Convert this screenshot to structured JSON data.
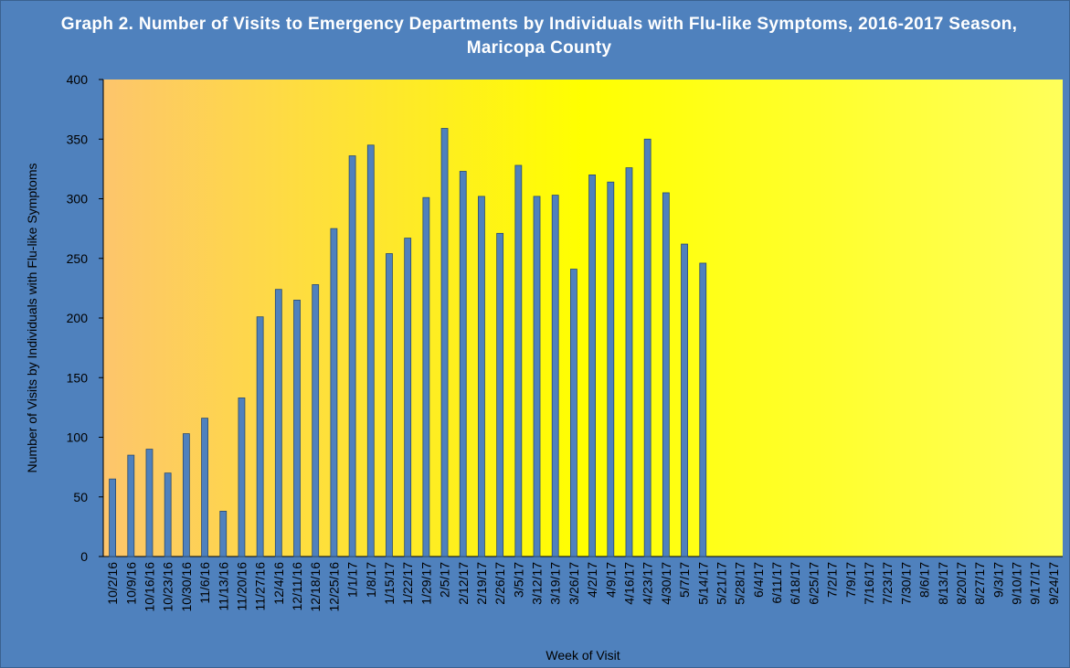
{
  "chart_data": {
    "type": "bar",
    "title": "Graph 2. Number of Visits to Emergency Departments by Individuals with Flu-like Symptoms, 2016-2017 Season, Maricopa County",
    "x_label": "Week of Visit",
    "y_label": "Number of Visits by Individuals with Flu-like Symptoms",
    "categories": [
      "10/2/16",
      "10/9/16",
      "10/16/16",
      "10/23/16",
      "10/30/16",
      "11/6/16",
      "11/13/16",
      "11/20/16",
      "11/27/16",
      "12/4/16",
      "12/11/16",
      "12/18/16",
      "12/25/16",
      "1/1/17",
      "1/8/17",
      "1/15/17",
      "1/22/17",
      "1/29/17",
      "2/5/17",
      "2/12/17",
      "2/19/17",
      "2/26/17",
      "3/5/17",
      "3/12/17",
      "3/19/17",
      "3/26/17",
      "4/2/17",
      "4/9/17",
      "4/16/17",
      "4/23/17",
      "4/30/17",
      "5/7/17",
      "5/14/17",
      "5/21/17",
      "5/28/17",
      "6/4/17",
      "6/11/17",
      "6/18/17",
      "6/25/17",
      "7/2/17",
      "7/9/17",
      "7/16/17",
      "7/23/17",
      "7/30/17",
      "8/6/17",
      "8/13/17",
      "8/20/17",
      "8/27/17",
      "9/3/17",
      "9/10/17",
      "9/17/17",
      "9/24/17"
    ],
    "values": [
      65,
      85,
      90,
      70,
      103,
      116,
      38,
      133,
      201,
      224,
      215,
      228,
      275,
      336,
      345,
      254,
      267,
      301,
      359,
      323,
      302,
      271,
      328,
      302,
      303,
      241,
      320,
      314,
      326,
      350,
      305,
      262,
      246,
      null,
      null,
      null,
      null,
      null,
      null,
      null,
      null,
      null,
      null,
      null,
      null,
      null,
      null,
      null,
      null,
      null,
      null,
      null
    ],
    "color": "#4f81bd",
    "ylim": [
      0,
      400
    ],
    "yticks": [
      0,
      50,
      100,
      150,
      200,
      250,
      300,
      350,
      400
    ],
    "grid": false
  }
}
